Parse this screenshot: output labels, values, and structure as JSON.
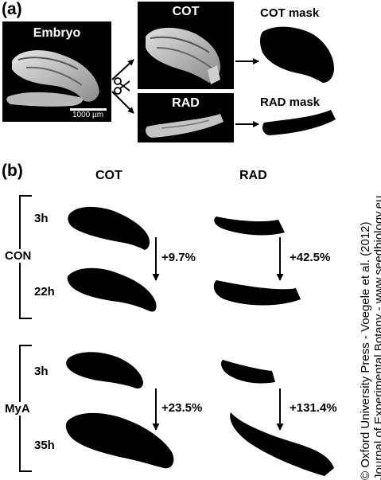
{
  "panel_a": {
    "label": "(a)",
    "embryo_title": "Embryo",
    "scalebar": "1000 µm",
    "cot_title": "COT",
    "rad_title": "RAD",
    "cot_mask_title": "COT mask",
    "rad_mask_title": "RAD mask"
  },
  "panel_b": {
    "label": "(b)",
    "col_cot": "COT",
    "col_rad": "RAD",
    "groups": [
      {
        "name": "CON",
        "time_start": "3h",
        "time_end": "22h",
        "cot_change": "+9.7%",
        "rad_change": "+42.5%"
      },
      {
        "name": "MyA",
        "time_start": "3h",
        "time_end": "35h",
        "cot_change": "+23.5%",
        "rad_change": "+131.4%"
      }
    ]
  },
  "credit": {
    "line1": "© Oxford University Press - Voegele et al. (2012)",
    "line2": "Journal of Experimental Botany - www.seedbiology.eu"
  }
}
